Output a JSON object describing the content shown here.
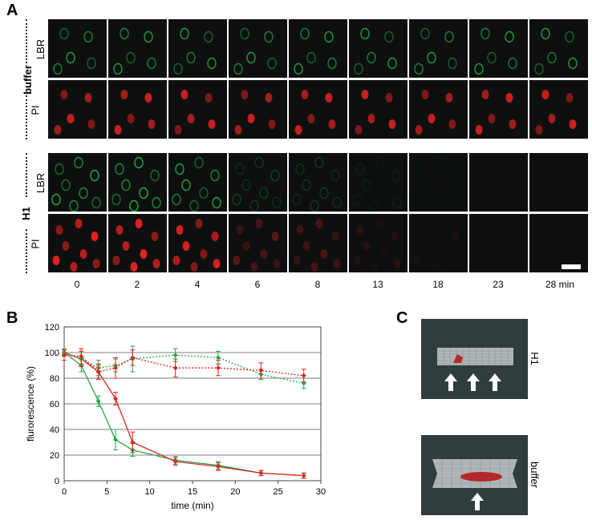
{
  "panel_a": {
    "letter": "A",
    "groups": [
      {
        "label": "buffer",
        "rows": [
          {
            "label": "LBR",
            "channel": "green"
          },
          {
            "label": "PI",
            "channel": "red"
          }
        ]
      },
      {
        "label": "H1",
        "rows": [
          {
            "label": "LBR",
            "channel": "green"
          },
          {
            "label": "PI",
            "channel": "red"
          }
        ]
      }
    ],
    "times": [
      "0",
      "2",
      "4",
      "6",
      "8",
      "13",
      "18",
      "23",
      "28 min"
    ],
    "h1_intensity": [
      1.0,
      1.0,
      0.95,
      0.35,
      0.28,
      0.12,
      0.05,
      0.0,
      0.0
    ]
  },
  "panel_b": {
    "letter": "B"
  },
  "panel_c": {
    "letter": "C",
    "images": [
      {
        "label": "H1"
      },
      {
        "label": "buffer"
      }
    ]
  },
  "colors": {
    "green": "#22aa44",
    "red": "#dd2222",
    "tile_bg": "#0d100f",
    "c_bg": "#2f3d3e"
  },
  "chart_data": {
    "type": "line",
    "xlabel": "time (min)",
    "ylabel": "flurorescence (%)",
    "xlim": [
      0,
      30
    ],
    "ylim": [
      0,
      120
    ],
    "xticks": [
      0,
      5,
      10,
      15,
      20,
      25,
      30
    ],
    "yticks": [
      0,
      20,
      40,
      60,
      80,
      100,
      120
    ],
    "grid": "horizontal",
    "series": [
      {
        "color": "#22aa44",
        "style": "solid",
        "x": [
          0,
          2,
          4,
          6,
          8,
          13,
          18,
          23,
          28
        ],
        "y": [
          100,
          90,
          62,
          32,
          24,
          16,
          12,
          6,
          4
        ],
        "err": [
          2,
          5,
          4,
          8,
          5,
          3,
          3,
          2,
          2
        ]
      },
      {
        "color": "#dd2222",
        "style": "solid",
        "x": [
          0,
          2,
          4,
          6,
          8,
          13,
          18,
          23,
          28
        ],
        "y": [
          100,
          95,
          85,
          64,
          30,
          15,
          11,
          6,
          4
        ],
        "err": [
          2,
          6,
          5,
          5,
          8,
          3,
          3,
          2,
          2
        ]
      },
      {
        "color": "#22aa44",
        "style": "dotted",
        "x": [
          0,
          2,
          4,
          6,
          8,
          13,
          18,
          23,
          28
        ],
        "y": [
          100,
          95,
          88,
          90,
          95,
          98,
          96,
          83,
          76
        ],
        "err": [
          3,
          5,
          6,
          5,
          10,
          5,
          5,
          4,
          4
        ]
      },
      {
        "color": "#dd2222",
        "style": "dotted",
        "x": [
          0,
          2,
          4,
          6,
          8,
          13,
          18,
          23,
          28
        ],
        "y": [
          98,
          97,
          85,
          88,
          96,
          88,
          88,
          86,
          82
        ],
        "err": [
          4,
          6,
          6,
          8,
          6,
          7,
          6,
          6,
          5
        ]
      }
    ]
  }
}
